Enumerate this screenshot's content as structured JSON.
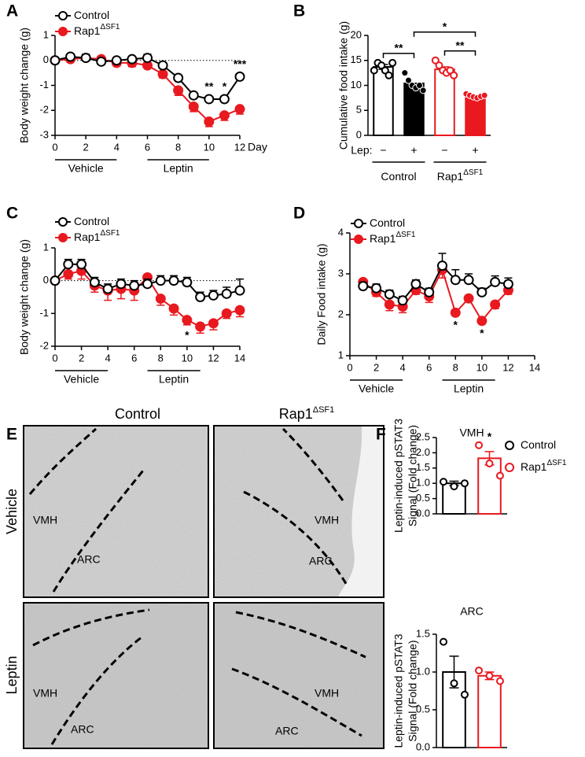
{
  "chart_data": [
    {
      "panel": "A",
      "type": "line",
      "ylabel": "Body weight change (g)",
      "xlabel": "Day",
      "xlim": [
        0,
        12
      ],
      "xticks": [
        0,
        2,
        4,
        6,
        8,
        10,
        12
      ],
      "ylim": [
        -3,
        1
      ],
      "yticks": [
        1,
        0,
        -1,
        -2,
        -3
      ],
      "reference_line": 0,
      "series": [
        {
          "name": "Control",
          "color": "#000000",
          "marker": "open",
          "error_direction": "up",
          "x": [
            0,
            1,
            2,
            3,
            4,
            5,
            6,
            7,
            8,
            9,
            10,
            11,
            12
          ],
          "values": [
            0,
            0.15,
            0.1,
            -0.05,
            0,
            0.05,
            0.1,
            -0.2,
            -0.7,
            -1.4,
            -1.55,
            -1.55,
            -0.65
          ],
          "errors": [
            0,
            0.1,
            0.15,
            0.1,
            0.1,
            0.1,
            0.15,
            0.1,
            0.1,
            0.1,
            0.1,
            0.1,
            0.1
          ]
        },
        {
          "name": "Rap1",
          "name_superscript": "ΔSF1",
          "color": "#e8191f",
          "marker": "filled",
          "error_direction": "down",
          "x": [
            0,
            1,
            2,
            3,
            4,
            5,
            6,
            7,
            8,
            9,
            10,
            11,
            12
          ],
          "values": [
            0,
            0.05,
            0.1,
            0.05,
            -0.1,
            -0.1,
            -0.2,
            -0.55,
            -1.2,
            -1.85,
            -2.45,
            -2.2,
            -1.95
          ],
          "errors": [
            0,
            0.1,
            0.1,
            0.1,
            0.1,
            0.15,
            0.1,
            0.15,
            0.2,
            0.2,
            0.2,
            0.2,
            0.2
          ]
        }
      ],
      "annotations": [
        {
          "text": "**",
          "x": 10,
          "position": "above"
        },
        {
          "text": "*",
          "x": 11,
          "position": "above"
        },
        {
          "text": "***",
          "x": 12,
          "position": "above"
        }
      ],
      "groups": [
        {
          "label": "Vehicle",
          "start": 0,
          "end": 4
        },
        {
          "label": "Leptin",
          "start": 6,
          "end": 10
        }
      ]
    },
    {
      "panel": "B",
      "type": "bar",
      "ylabel": "Cumulative food intake (g)",
      "ylim": [
        0,
        20
      ],
      "yticks": [
        0,
        5,
        10,
        15,
        20
      ],
      "category_prefix": "Lep:",
      "categories": [
        "−",
        "+",
        "−",
        "+"
      ],
      "values": [
        13.7,
        10.4,
        13.2,
        7.8
      ],
      "errors": [
        0.5,
        0.6,
        0.5,
        0.3
      ],
      "points": [
        [
          13,
          14.5,
          14,
          13,
          12,
          14.5
        ],
        [
          12.5,
          11,
          10,
          9.5,
          10,
          9
        ],
        [
          15,
          14,
          13,
          12.5,
          13,
          12
        ],
        [
          8.3,
          8,
          7.7,
          7.5,
          7.8,
          8
        ]
      ],
      "colors": [
        "#000000",
        "#000000",
        "#e8191f",
        "#e8191f"
      ],
      "filled": [
        false,
        true,
        false,
        true
      ],
      "groups": [
        {
          "label": "Control",
          "start": 0,
          "end": 1
        },
        {
          "label": "Rap1",
          "label_superscript": "ΔSF1",
          "start": 2,
          "end": 3
        }
      ],
      "brackets": [
        {
          "text": "**",
          "from": 0,
          "to": 1
        },
        {
          "text": "**",
          "from": 2,
          "to": 3
        },
        {
          "text": "*",
          "from": 1,
          "to": 3
        }
      ]
    },
    {
      "panel": "C",
      "type": "line",
      "ylabel": "Body weight change (g)",
      "xlim": [
        0,
        14
      ],
      "xticks": [
        0,
        2,
        4,
        6,
        8,
        10,
        12,
        14
      ],
      "ylim": [
        -2,
        1
      ],
      "yticks": [
        1,
        0,
        -1,
        -2
      ],
      "reference_line": 0,
      "series": [
        {
          "name": "Control",
          "color": "#000000",
          "marker": "open",
          "error_direction": "up",
          "x": [
            0,
            1,
            2,
            3,
            4,
            5,
            6,
            7,
            8,
            9,
            10,
            11,
            12,
            13,
            14
          ],
          "values": [
            0,
            0.5,
            0.5,
            -0.05,
            -0.25,
            -0.1,
            -0.15,
            -0.1,
            0,
            0,
            -0.05,
            -0.5,
            -0.45,
            -0.4,
            -0.3
          ],
          "errors": [
            0,
            0.15,
            0.15,
            0.15,
            0.15,
            0.15,
            0.15,
            0.15,
            0.15,
            0.15,
            0.15,
            0.15,
            0.15,
            0.2,
            0.35
          ]
        },
        {
          "name": "Rap1",
          "name_superscript": "ΔSF1",
          "color": "#e8191f",
          "marker": "filled",
          "error_direction": "down",
          "x": [
            0,
            1,
            2,
            3,
            4,
            5,
            6,
            7,
            8,
            9,
            10,
            11,
            12,
            13,
            14
          ],
          "values": [
            0,
            0.2,
            0.3,
            -0.15,
            -0.3,
            -0.25,
            -0.3,
            0.1,
            -0.55,
            -0.85,
            -1.2,
            -1.4,
            -1.3,
            -1.0,
            -0.9
          ],
          "errors": [
            0,
            0.15,
            0.25,
            0.2,
            0.3,
            0.3,
            0.3,
            0.15,
            0.2,
            0.2,
            0.15,
            0.2,
            0.2,
            0.15,
            0.2
          ]
        }
      ],
      "annotations": [
        {
          "text": "*",
          "x": 10,
          "position": "below"
        }
      ],
      "groups": [
        {
          "label": "Vehicle",
          "start": 0,
          "end": 4
        },
        {
          "label": "Leptin",
          "start": 7,
          "end": 11
        }
      ]
    },
    {
      "panel": "D",
      "type": "line",
      "ylabel": "Daily Food intake (g)",
      "xlim": [
        0,
        14
      ],
      "xticks": [
        0,
        2,
        4,
        6,
        8,
        10,
        12,
        14
      ],
      "ylim": [
        1,
        4
      ],
      "yticks": [
        1,
        2,
        3,
        4
      ],
      "series": [
        {
          "name": "Control",
          "color": "#000000",
          "marker": "open",
          "error_direction": "up",
          "x": [
            1,
            2,
            3,
            4,
            5,
            6,
            7,
            8,
            9,
            10,
            11,
            12
          ],
          "values": [
            2.7,
            2.65,
            2.5,
            2.35,
            2.75,
            2.55,
            3.2,
            2.85,
            2.85,
            2.55,
            2.8,
            2.75
          ],
          "errors": [
            0.1,
            0.1,
            0.1,
            0.1,
            0.1,
            0.1,
            0.3,
            0.25,
            0.15,
            0.1,
            0.15,
            0.15
          ]
        },
        {
          "name": "Rap1",
          "name_superscript": "ΔSF1",
          "color": "#e8191f",
          "marker": "filled",
          "error_direction": "down",
          "x": [
            1,
            2,
            3,
            4,
            5,
            6,
            7,
            8,
            9,
            10,
            11,
            12
          ],
          "values": [
            2.8,
            2.55,
            2.25,
            2.2,
            2.6,
            2.45,
            3.1,
            2.05,
            2.4,
            1.85,
            2.25,
            2.6
          ],
          "errors": [
            0.1,
            0.1,
            0.15,
            0.15,
            0.1,
            0.15,
            0.2,
            0.05,
            0.05,
            0.05,
            0.1,
            0.1
          ]
        }
      ],
      "annotations": [
        {
          "text": "*",
          "x": 8,
          "position": "below"
        },
        {
          "text": "*",
          "x": 10,
          "position": "below"
        }
      ],
      "groups": [
        {
          "label": "Vehicle",
          "start": 0,
          "end": 4
        },
        {
          "label": "Leptin",
          "start": 7,
          "end": 11
        }
      ]
    },
    {
      "panel": "F",
      "type": "bar",
      "title": "VMH",
      "ylabel": [
        "Leptin-induced pSTAT3",
        "Signal (Fold change)"
      ],
      "ylim": [
        0,
        2.5
      ],
      "yticks": [
        {
          "value": 0,
          "label": "0.0"
        },
        0.5,
        {
          "value": 1,
          "label": "1.0"
        },
        1.5,
        {
          "value": 2,
          "label": "2.0"
        },
        2.5
      ],
      "values": [
        1.0,
        1.82
      ],
      "errors": [
        0.07,
        0.22
      ],
      "points": [
        [
          1.05,
          0.9,
          1.0
        ],
        [
          2.25,
          1.65,
          1.25
        ]
      ],
      "colors": [
        "#000000",
        "#e8191f"
      ],
      "filled": [
        false,
        false
      ],
      "legend": [
        {
          "name": "Control",
          "color": "#000000"
        },
        {
          "name": "Rap1",
          "name_superscript": "ΔSF1",
          "color": "#e8191f"
        }
      ],
      "annotations": [
        {
          "text": "*",
          "bar": 1
        }
      ]
    },
    {
      "type": "bar",
      "title": "ARC",
      "ylabel": [
        "Leptin-induced pSTAT3",
        "Signal (Fold change)"
      ],
      "ylim": [
        0,
        1.5
      ],
      "yticks": [
        {
          "value": 0,
          "label": "0.0"
        },
        0.5,
        {
          "value": 1,
          "label": "1.0"
        },
        1.5
      ],
      "values": [
        1.0,
        0.95
      ],
      "errors": [
        0.21,
        0.05
      ],
      "points": [
        [
          1.4,
          0.85,
          0.7
        ],
        [
          1.02,
          0.95,
          0.88
        ]
      ],
      "colors": [
        "#000000",
        "#e8191f"
      ],
      "filled": [
        false,
        false
      ]
    }
  ],
  "image_panel": {
    "letter": "E",
    "columns": [
      {
        "name": "Control"
      },
      {
        "name": "Rap1",
        "superscript": "ΔSF1"
      }
    ],
    "rows": [
      "Vehicle",
      "Leptin"
    ],
    "regions": [
      "VMH",
      "ARC"
    ]
  }
}
